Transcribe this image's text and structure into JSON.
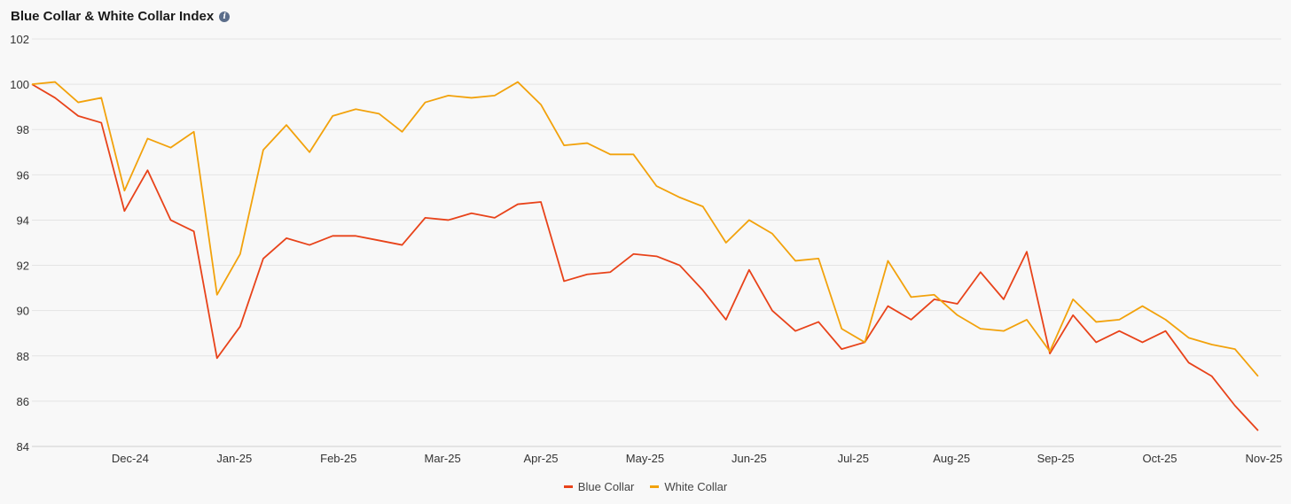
{
  "header": {
    "title": "Blue Collar & White Collar Index",
    "info_icon": "info-icon"
  },
  "chart_data": {
    "type": "line",
    "title": "Blue Collar & White Collar Index",
    "xlabel": "",
    "ylabel": "",
    "ylim": [
      84,
      102
    ],
    "y_ticks": [
      84,
      86,
      88,
      90,
      92,
      94,
      96,
      98,
      100,
      102
    ],
    "x_ticks": [
      "Dec-24",
      "Jan-25",
      "Feb-25",
      "Mar-25",
      "Apr-25",
      "May-25",
      "Jun-25",
      "Jul-25",
      "Aug-25",
      "Sep-25",
      "Oct-25",
      "Nov-25"
    ],
    "x_tick_positions": [
      4.25,
      8.75,
      13.25,
      17.75,
      22,
      26.5,
      31,
      35.5,
      39.75,
      44.25,
      48.75,
      53.25
    ],
    "x_range": [
      0,
      54
    ],
    "grid": true,
    "legend": "bottom-center",
    "series": [
      {
        "name": "Blue Collar",
        "color": "#e8431a",
        "values": [
          100.0,
          99.4,
          98.6,
          98.3,
          94.4,
          96.2,
          94.0,
          93.5,
          87.9,
          89.3,
          92.3,
          93.2,
          92.9,
          93.3,
          93.3,
          93.1,
          92.9,
          94.1,
          94.0,
          94.3,
          94.1,
          94.7,
          94.8,
          91.3,
          91.6,
          91.7,
          92.5,
          92.4,
          92.0,
          90.9,
          89.6,
          91.8,
          90.0,
          89.1,
          89.5,
          88.3,
          88.6,
          90.2,
          89.6,
          90.5,
          90.3,
          91.7,
          90.5,
          92.6,
          88.1,
          89.8,
          88.6,
          89.1,
          88.6,
          89.1,
          87.7,
          87.1,
          85.8,
          84.7
        ]
      },
      {
        "name": "White Collar",
        "color": "#f2a20c",
        "values": [
          100.0,
          100.1,
          99.2,
          99.4,
          95.3,
          97.6,
          97.2,
          97.9,
          90.7,
          92.5,
          97.1,
          98.2,
          97.0,
          98.6,
          98.9,
          98.7,
          97.9,
          99.2,
          99.5,
          99.4,
          99.5,
          100.1,
          99.1,
          97.3,
          97.4,
          96.9,
          96.9,
          95.5,
          95.0,
          94.6,
          93.0,
          94.0,
          93.4,
          92.2,
          92.3,
          89.2,
          88.6,
          92.2,
          90.6,
          90.7,
          89.8,
          89.2,
          89.1,
          89.6,
          88.2,
          90.5,
          89.5,
          89.6,
          90.2,
          89.6,
          88.8,
          88.5,
          88.3,
          87.1
        ]
      }
    ]
  }
}
